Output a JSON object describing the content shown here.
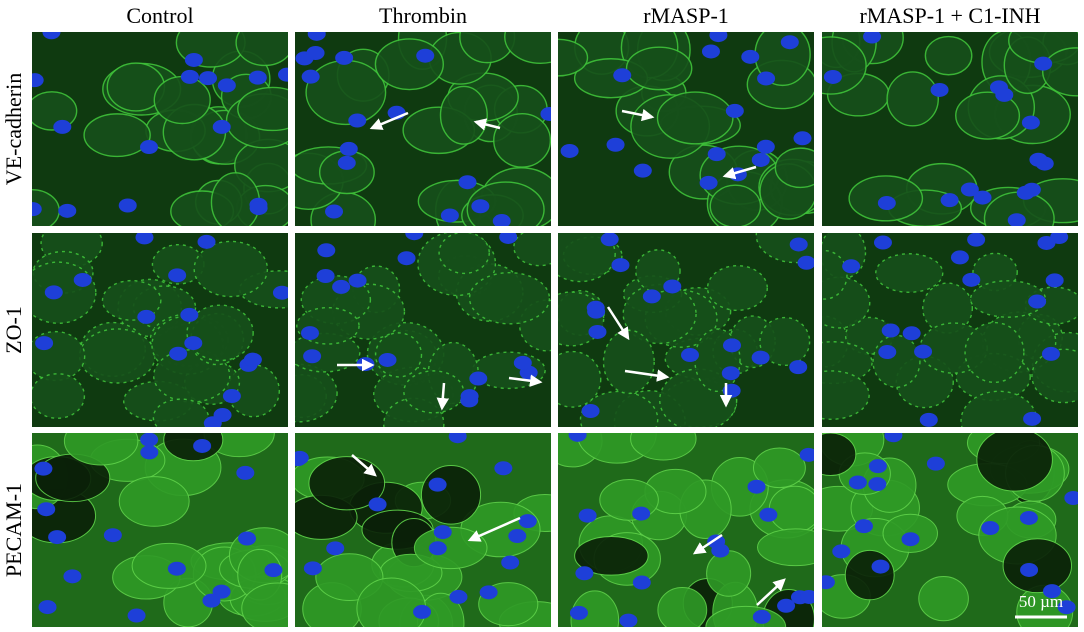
{
  "columns": [
    "Control",
    "Thrombin",
    "rMASP-1",
    "rMASP-1 + C1-INH"
  ],
  "rows": [
    "VE-cadherin",
    "ZO-1",
    "PECAM-1"
  ],
  "scale_bar": "50 µm"
}
